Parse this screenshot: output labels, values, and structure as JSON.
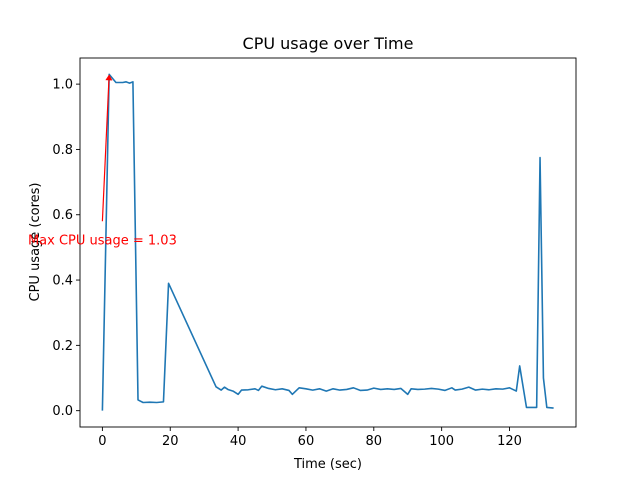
{
  "chart_data": {
    "type": "line",
    "title": "CPU usage over Time",
    "xlabel": "Time (sec)",
    "ylabel": "CPU usage (cores)",
    "xlim": [
      -6.6,
      139.6
    ],
    "ylim": [
      -0.05,
      1.08
    ],
    "xticks": [
      0,
      20,
      40,
      60,
      80,
      100,
      120
    ],
    "yticks": [
      0.0,
      0.2,
      0.4,
      0.6,
      0.8,
      1.0
    ],
    "xtick_labels": [
      "0",
      "20",
      "40",
      "60",
      "80",
      "100",
      "120"
    ],
    "ytick_labels": [
      "0.0",
      "0.2",
      "0.4",
      "0.6",
      "0.8",
      "1.0"
    ],
    "grid": false,
    "line_color": "#1f77b4",
    "series": [
      {
        "x": [
          0,
          2,
          4,
          6,
          7,
          8,
          9,
          10.5,
          12,
          14,
          16,
          18,
          19.5,
          33.5,
          35,
          36,
          37,
          38.5,
          40,
          41,
          43,
          45,
          46,
          47,
          49,
          51,
          53,
          55,
          56,
          58,
          60,
          62,
          64,
          66,
          68,
          70,
          72,
          74,
          76,
          78,
          80,
          82,
          84,
          86,
          88,
          90,
          91,
          93,
          95,
          97,
          99,
          101,
          103,
          104,
          106,
          108,
          110,
          112,
          114,
          116,
          118,
          120,
          122,
          123,
          125,
          126,
          128,
          129,
          130,
          131,
          133
        ],
        "y": [
          0.0,
          1.03,
          1.005,
          1.005,
          1.007,
          1.003,
          1.007,
          0.033,
          0.025,
          0.026,
          0.025,
          0.027,
          0.39,
          0.073,
          0.063,
          0.072,
          0.065,
          0.06,
          0.05,
          0.063,
          0.064,
          0.067,
          0.062,
          0.075,
          0.068,
          0.064,
          0.067,
          0.062,
          0.05,
          0.07,
          0.067,
          0.063,
          0.067,
          0.06,
          0.067,
          0.063,
          0.065,
          0.07,
          0.062,
          0.063,
          0.069,
          0.065,
          0.067,
          0.065,
          0.068,
          0.05,
          0.067,
          0.065,
          0.066,
          0.068,
          0.066,
          0.062,
          0.07,
          0.063,
          0.066,
          0.072,
          0.063,
          0.066,
          0.064,
          0.067,
          0.066,
          0.07,
          0.06,
          0.137,
          0.01,
          0.01,
          0.01,
          0.775,
          0.1,
          0.01,
          0.008
        ]
      }
    ],
    "annotations": [
      {
        "text": "Max CPU usage = 1.03",
        "xy": [
          2,
          1.03
        ],
        "xytext": [
          0,
          0.58
        ],
        "color": "#ff0000",
        "arrow": true
      }
    ]
  }
}
